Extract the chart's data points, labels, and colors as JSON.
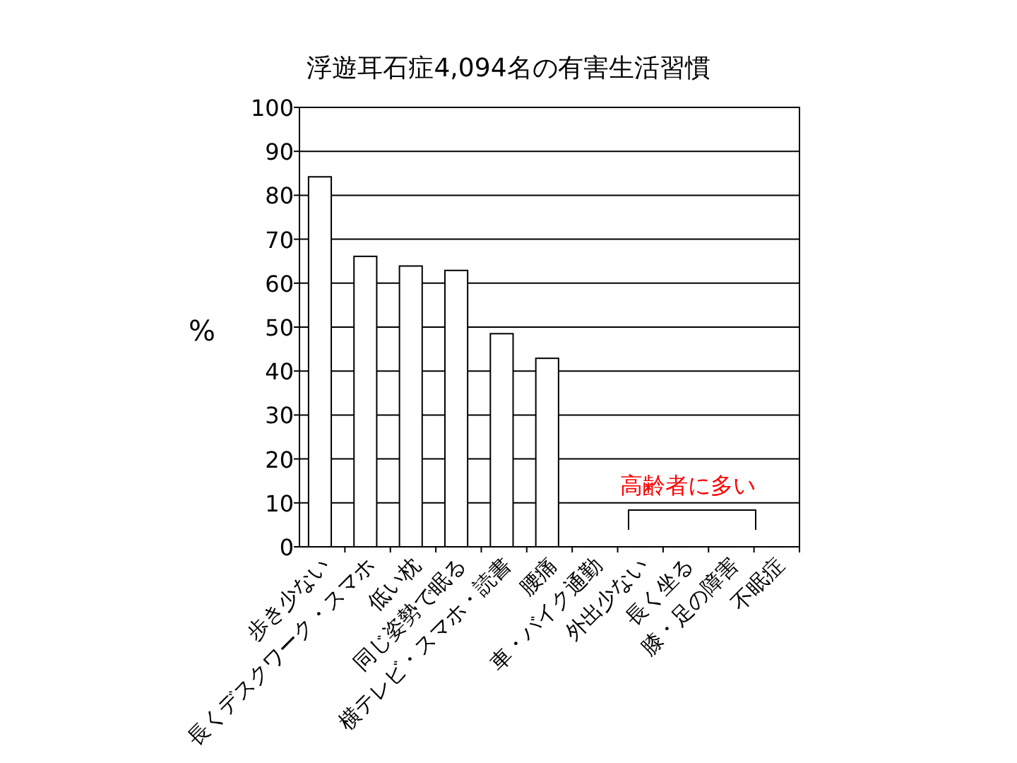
{
  "chart_data": {
    "type": "bar",
    "title": "浮遊耳石症4,094名の有害生活習慣",
    "ylabel": "%",
    "categories": [
      "歩き少ない",
      "長くデスクワーク・スマホ",
      "低い枕",
      "同じ姿勢で眠る",
      "横テレビ・スマホ・読書",
      "腰痛",
      "車・バイク通勤",
      "外出少ない",
      "長く坐る",
      "膝・足の障害",
      "不眠症"
    ],
    "values": [
      84.2,
      66.1,
      63.9,
      62.9,
      48.5,
      42.9,
      0,
      0,
      0,
      0,
      0
    ],
    "color": "#ffffff",
    "ylim": [
      0,
      100
    ],
    "yticks": [
      0,
      10,
      20,
      30,
      40,
      50,
      60,
      70,
      80,
      90,
      100
    ],
    "grid": "y",
    "annotations": [
      "高齢者に多い"
    ]
  }
}
